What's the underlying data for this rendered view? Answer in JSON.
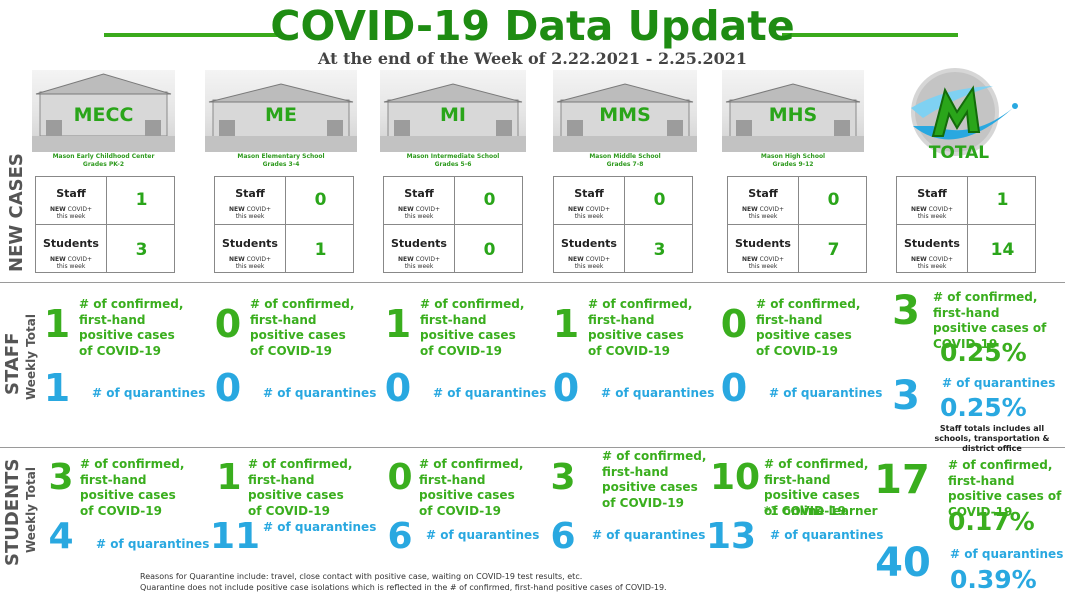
{
  "header": {
    "title": "COVID-19 Data Update",
    "subtitle": "At the end of the Week of 2.22.2021 - 2.25.2021"
  },
  "sections": {
    "new_cases": "NEW CASES",
    "staff": "STAFF",
    "students": "STUDENTS",
    "weekly_total": "Weekly Total"
  },
  "labels": {
    "staff": "Staff",
    "students": "Students",
    "new_covid_new": "NEW",
    "new_covid_rest": "COVID+",
    "this_week": "this week",
    "confirmed": "# of confirmed, first-hand positive cases of COVID-19",
    "quarantines": "# of quarantines"
  },
  "schools": [
    {
      "abbr": "MECC",
      "name": "Mason Early Childhood Center",
      "grades": "Grades PK-2",
      "new_staff": "1",
      "new_students": "3",
      "staff_confirmed": "1",
      "staff_quarantines": "1",
      "student_confirmed": "3",
      "student_quarantines": "4"
    },
    {
      "abbr": "ME",
      "name": "Mason Elementary School",
      "grades": "Grades 3-4",
      "new_staff": "0",
      "new_students": "1",
      "staff_confirmed": "0",
      "staff_quarantines": "0",
      "student_confirmed": "1",
      "student_quarantines": "11"
    },
    {
      "abbr": "MI",
      "name": "Mason Intermediate  School",
      "grades": "Grades 5-6",
      "new_staff": "0",
      "new_students": "0",
      "staff_confirmed": "1",
      "staff_quarantines": "0",
      "student_confirmed": "0",
      "student_quarantines": "6"
    },
    {
      "abbr": "MMS",
      "name": "Mason Middle School",
      "grades": "Grades 7-8",
      "new_staff": "0",
      "new_students": "3",
      "staff_confirmed": "1",
      "staff_quarantines": "0",
      "student_confirmed": "3",
      "student_quarantines": "6"
    },
    {
      "abbr": "MHS",
      "name": "Mason High School",
      "grades": "Grades 9-12",
      "new_staff": "0",
      "new_students": "7",
      "staff_confirmed": "0",
      "staff_quarantines": "0",
      "student_confirmed": "10",
      "student_quarantines": "13",
      "student_note": "*1 online learner"
    }
  ],
  "total": {
    "label": "TOTAL",
    "new_staff": "1",
    "new_students": "14",
    "staff_confirmed": "3",
    "staff_confirmed_pct": "0.25%",
    "staff_quarantines": "3",
    "staff_quarantines_pct": "0.25%",
    "staff_note": "Staff totals includes all schools, transportation & district office",
    "student_confirmed": "17",
    "student_confirmed_pct": "0.17%",
    "student_quarantines": "40",
    "student_quarantines_pct": "0.39%"
  },
  "footer": {
    "line1": "Reasons for Quarantine include: travel, close contact with positive case, waiting on COVID-19 test results, etc.",
    "line2": "Quarantine does not include positive case isolations which is reflected in the # of confirmed, first-hand positive cases of COVID-19."
  },
  "colors": {
    "title_green": "#1e8c12",
    "stat_green": "#3aae1e",
    "quarantine_blue": "#29a8e0"
  },
  "icons": {
    "logo": "mason-m-logo"
  }
}
